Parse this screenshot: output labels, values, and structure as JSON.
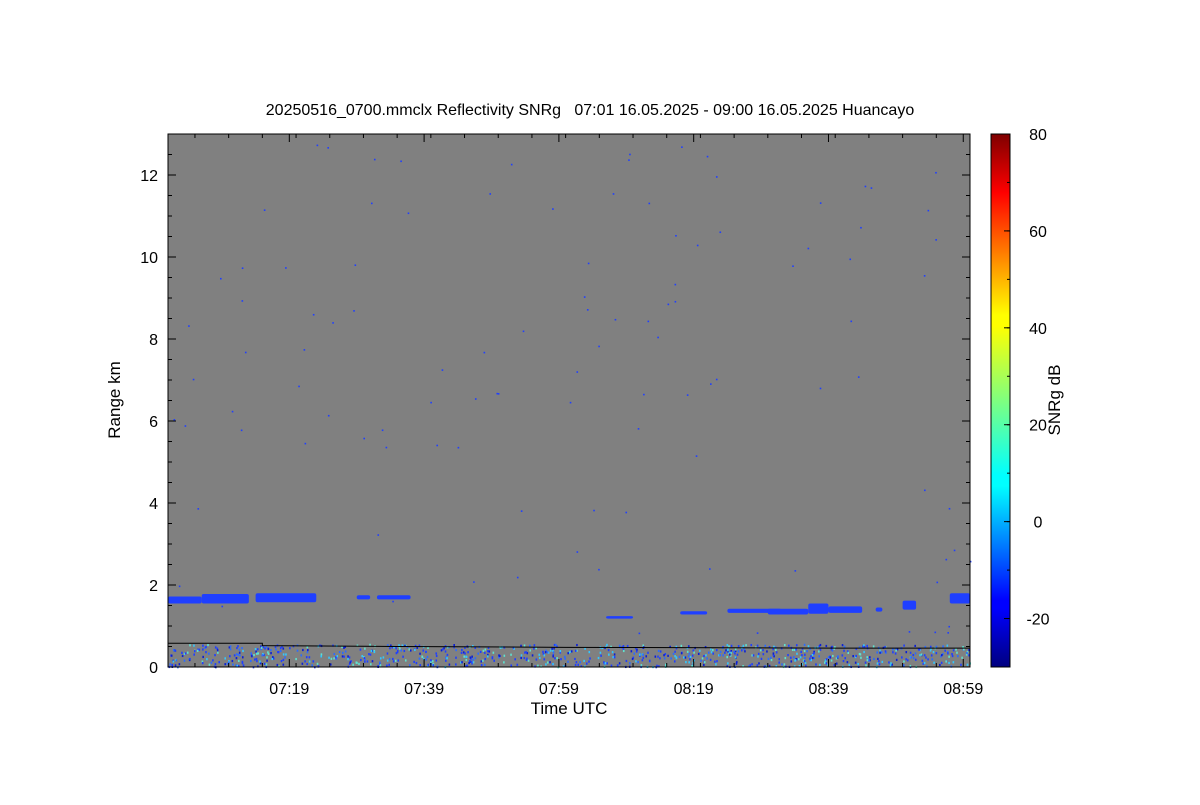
{
  "chart_data": {
    "type": "heatmap",
    "title": "20250516_0700.mmclx Reflectivity SNRg   07:01 16.05.2025 - 09:00 16.05.2025 Huancayo",
    "xlabel": "Time UTC",
    "ylabel": "Range km",
    "colorbar_label": "SNRg dB",
    "x_ticks": [
      "07:19",
      "07:39",
      "07:59",
      "08:19",
      "08:39",
      "08:59"
    ],
    "x_tick_minutes": [
      19,
      39,
      59,
      79,
      99,
      119
    ],
    "xlim_minutes": [
      1,
      120
    ],
    "y_ticks": [
      "0",
      "2",
      "4",
      "6",
      "8",
      "10",
      "12"
    ],
    "y_tick_values": [
      0,
      2,
      4,
      6,
      8,
      10,
      12
    ],
    "ylim": [
      0,
      13
    ],
    "colorbar_ticks": [
      "-20",
      "0",
      "20",
      "40",
      "60",
      "80"
    ],
    "colorbar_tick_values": [
      -20,
      0,
      20,
      40,
      60,
      80
    ],
    "colorbar_range": [
      -30,
      80
    ],
    "background_color": "#808080",
    "echo_color": "#1f3fff",
    "echo_layers": [
      {
        "start_min": 1,
        "end_min": 6,
        "base_km": 1.55,
        "top_km": 1.72
      },
      {
        "start_min": 6,
        "end_min": 13,
        "base_km": 1.55,
        "top_km": 1.78
      },
      {
        "start_min": 14,
        "end_min": 23,
        "base_km": 1.58,
        "top_km": 1.8
      },
      {
        "start_min": 29,
        "end_min": 31,
        "base_km": 1.65,
        "top_km": 1.75
      },
      {
        "start_min": 32,
        "end_min": 37,
        "base_km": 1.65,
        "top_km": 1.75
      },
      {
        "start_min": 66,
        "end_min": 70,
        "base_km": 1.18,
        "top_km": 1.24
      },
      {
        "start_min": 77,
        "end_min": 81,
        "base_km": 1.28,
        "top_km": 1.36
      },
      {
        "start_min": 84,
        "end_min": 92,
        "base_km": 1.32,
        "top_km": 1.42
      },
      {
        "start_min": 90,
        "end_min": 96,
        "base_km": 1.28,
        "top_km": 1.42
      },
      {
        "start_min": 96,
        "end_min": 99,
        "base_km": 1.3,
        "top_km": 1.55
      },
      {
        "start_min": 99,
        "end_min": 104,
        "base_km": 1.32,
        "top_km": 1.48
      },
      {
        "start_min": 106,
        "end_min": 107,
        "base_km": 1.35,
        "top_km": 1.45
      },
      {
        "start_min": 110,
        "end_min": 112,
        "base_km": 1.4,
        "top_km": 1.62
      },
      {
        "start_min": 117,
        "end_min": 120,
        "base_km": 1.55,
        "top_km": 1.8
      }
    ],
    "boundary_line": [
      [
        1,
        0.58
      ],
      [
        15,
        0.58
      ],
      [
        15,
        0.52
      ],
      [
        35,
        0.5
      ],
      [
        60,
        0.48
      ],
      [
        100,
        0.46
      ],
      [
        120,
        0.46
      ]
    ],
    "colormap": "jet",
    "grid": false
  }
}
